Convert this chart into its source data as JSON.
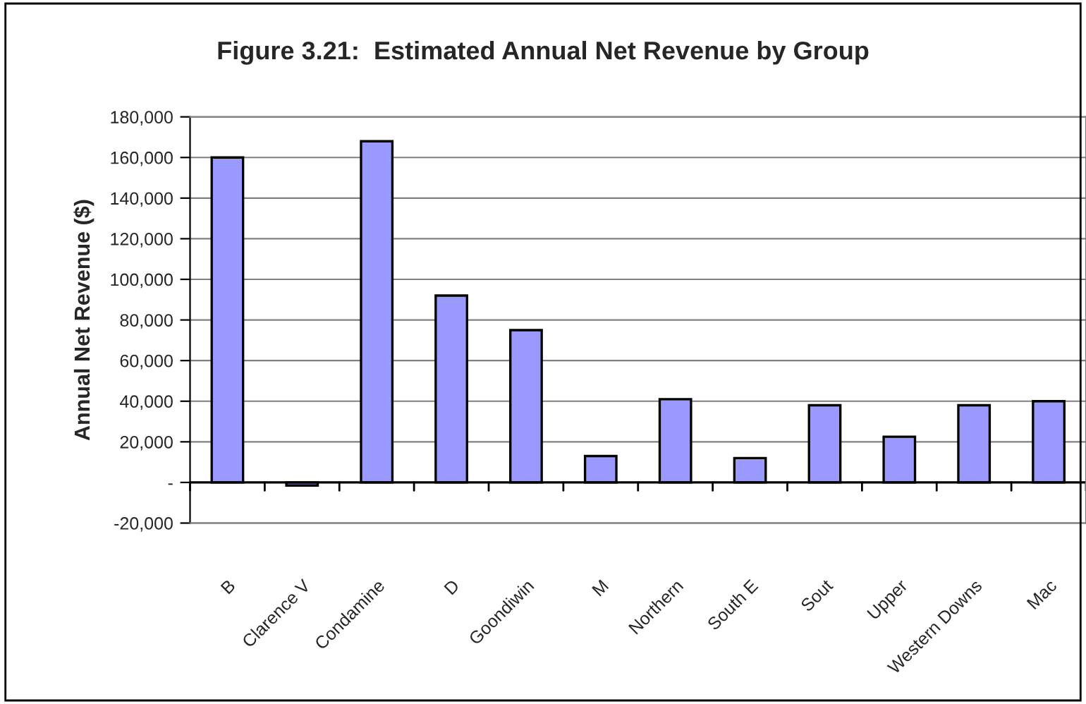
{
  "chart_data": {
    "type": "bar",
    "title": "Figure 3.21:  Estimated Annual Net Revenue by Group",
    "ylabel": "Annual Net Revenue ($)",
    "categories": [
      "B",
      "Clarence V",
      "Condamine",
      "D",
      "Goondiwin",
      "M",
      "Northern",
      "South E",
      "Sout",
      "Upper",
      "Western Downs",
      "Mac"
    ],
    "values": [
      160000,
      -1500,
      168000,
      92000,
      75000,
      13000,
      41000,
      12000,
      38000,
      22500,
      38000,
      40000
    ],
    "color": "#9999ff",
    "ylim": [
      -20000,
      180000
    ],
    "yticks": [
      {
        "value": -20000,
        "label": "-20,000"
      },
      {
        "value": 0,
        "label": "-"
      },
      {
        "value": 20000,
        "label": "20,000"
      },
      {
        "value": 40000,
        "label": "40,000"
      },
      {
        "value": 60000,
        "label": "60,000"
      },
      {
        "value": 80000,
        "label": "80,000"
      },
      {
        "value": 100000,
        "label": "100,000"
      },
      {
        "value": 120000,
        "label": "120,000"
      },
      {
        "value": 140000,
        "label": "140,000"
      },
      {
        "value": 160000,
        "label": "160,000"
      },
      {
        "value": 180000,
        "label": "180,000"
      }
    ],
    "grid": "y",
    "legend": false
  }
}
